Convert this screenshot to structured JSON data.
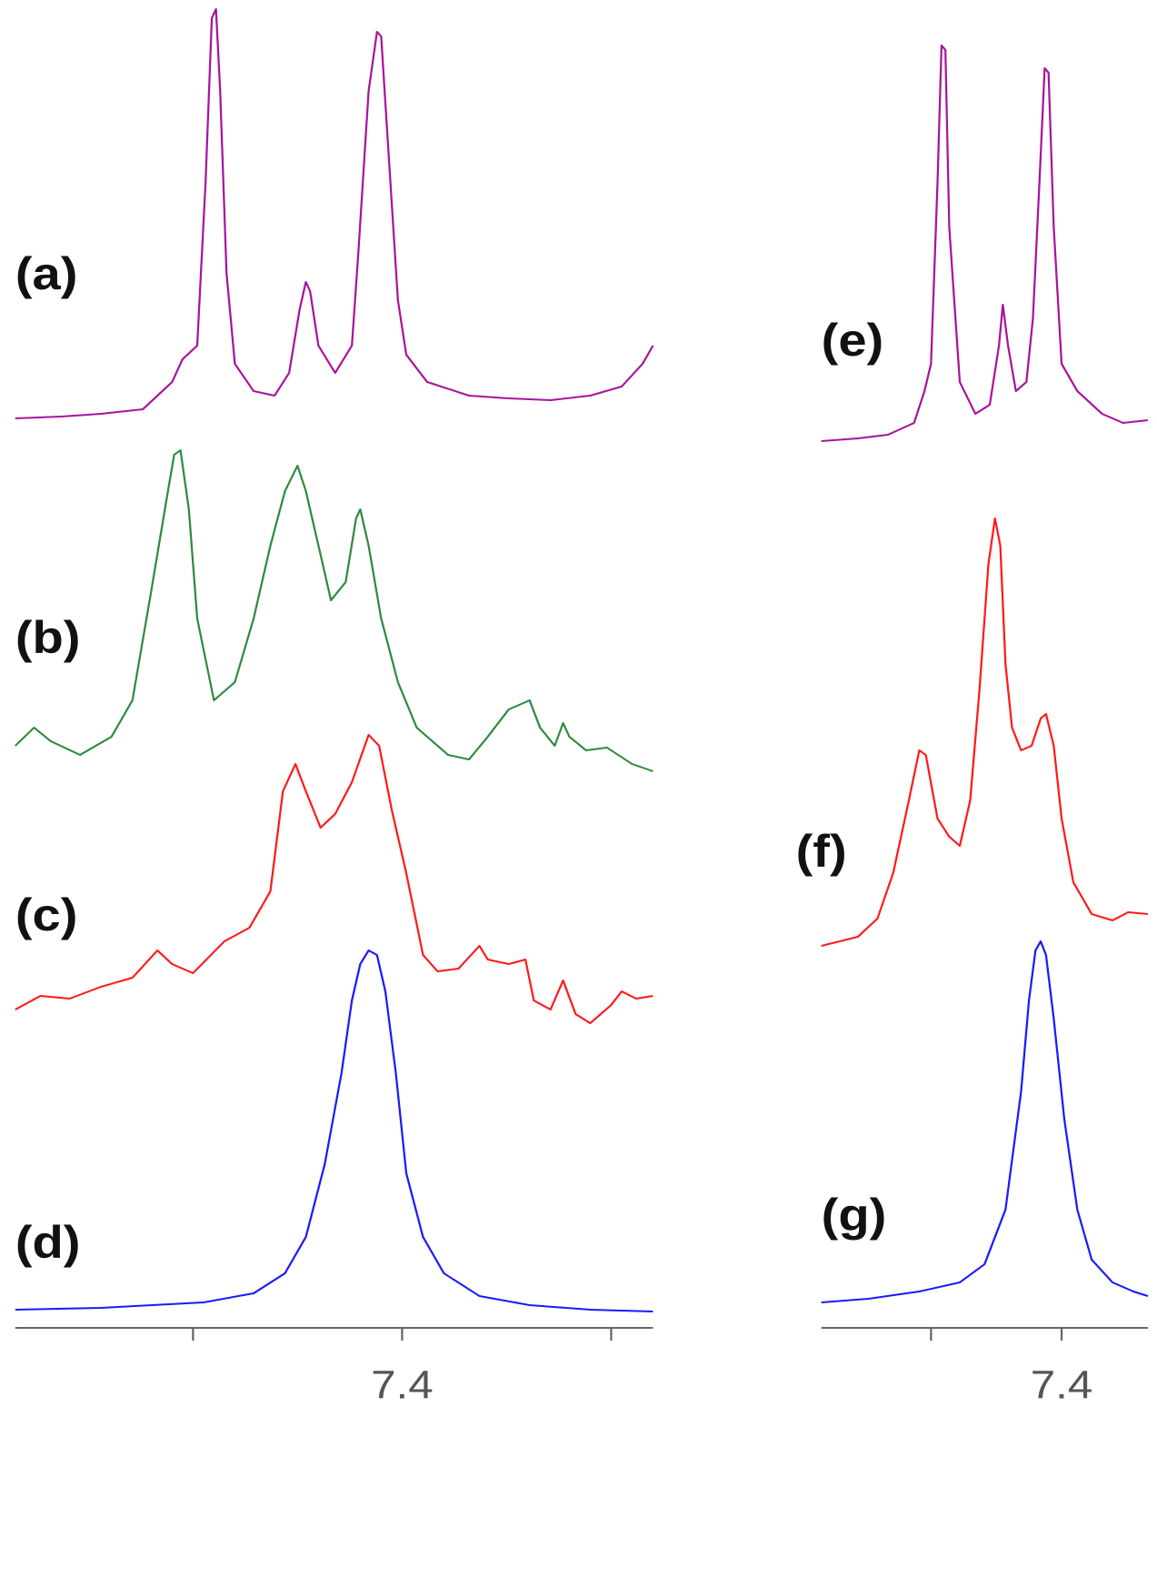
{
  "chart_data": [
    {
      "type": "line",
      "xlim": [
        7.585,
        7.28
      ],
      "xticks": [
        7.4
      ],
      "minor_xticks": [
        7.5,
        7.3
      ],
      "series": [
        {
          "name": "(a)",
          "color": "#a8149c",
          "x": [
            7.585,
            7.563,
            7.544,
            7.524,
            7.51,
            7.505,
            7.498,
            7.494,
            7.491,
            7.489,
            7.487,
            7.484,
            7.48,
            7.471,
            7.461,
            7.454,
            7.449,
            7.446,
            7.444,
            7.44,
            7.432,
            7.424,
            7.421,
            7.416,
            7.412,
            7.41,
            7.407,
            7.402,
            7.398,
            7.388,
            7.368,
            7.349,
            7.329,
            7.31,
            7.295,
            7.285,
            7.28
          ],
          "values": [
            0,
            2,
            5,
            10,
            40,
            65,
            80,
            260,
            440,
            450,
            360,
            160,
            60,
            30,
            25,
            50,
            120,
            150,
            140,
            80,
            50,
            80,
            180,
            360,
            425,
            420,
            310,
            130,
            70,
            40,
            25,
            22,
            20,
            25,
            35,
            60,
            80
          ]
        },
        {
          "name": "(b)",
          "color": "#2e8b3e",
          "x": [
            7.585,
            7.576,
            7.568,
            7.554,
            7.539,
            7.529,
            7.52,
            7.512,
            7.509,
            7.506,
            7.502,
            7.498,
            7.49,
            7.48,
            7.471,
            7.463,
            7.456,
            7.45,
            7.446,
            7.439,
            7.434,
            7.427,
            7.422,
            7.42,
            7.416,
            7.41,
            7.402,
            7.393,
            7.378,
            7.368,
            7.359,
            7.349,
            7.344,
            7.339,
            7.334,
            7.327,
            7.323,
            7.32,
            7.312,
            7.302,
            7.29,
            7.28
          ],
          "values": [
            25,
            45,
            30,
            15,
            35,
            75,
            195,
            305,
            345,
            350,
            285,
            165,
            75,
            95,
            165,
            245,
            305,
            333,
            305,
            235,
            185,
            205,
            275,
            285,
            245,
            165,
            95,
            45,
            15,
            10,
            35,
            65,
            70,
            75,
            45,
            25,
            50,
            35,
            20,
            23,
            5,
            -3
          ]
        },
        {
          "name": "(c)",
          "color": "#ff1a1a",
          "x": [
            7.585,
            7.573,
            7.559,
            7.544,
            7.529,
            7.517,
            7.51,
            7.5,
            7.485,
            7.473,
            7.463,
            7.457,
            7.451,
            7.446,
            7.439,
            7.432,
            7.424,
            7.416,
            7.411,
            7.405,
            7.398,
            7.39,
            7.383,
            7.373,
            7.363,
            7.359,
            7.349,
            7.341,
            7.337,
            7.329,
            7.323,
            7.317,
            7.31,
            7.3,
            7.295,
            7.288,
            7.28
          ],
          "values": [
            -5,
            10,
            7,
            20,
            30,
            60,
            45,
            35,
            70,
            85,
            125,
            235,
            265,
            235,
            195,
            210,
            245,
            297,
            285,
            215,
            145,
            55,
            37,
            40,
            65,
            50,
            45,
            50,
            5,
            -5,
            27,
            -10,
            -20,
            0,
            15,
            7,
            10
          ]
        },
        {
          "name": "(d)",
          "color": "#1a1aff",
          "x": [
            7.585,
            7.544,
            7.495,
            7.471,
            7.456,
            7.446,
            7.437,
            7.429,
            7.424,
            7.42,
            7.416,
            7.412,
            7.408,
            7.403,
            7.398,
            7.39,
            7.38,
            7.363,
            7.339,
            7.31,
            7.28
          ],
          "values": [
            0,
            2,
            8,
            18,
            40,
            80,
            160,
            260,
            340,
            380,
            395,
            390,
            350,
            260,
            150,
            80,
            40,
            15,
            5,
            0,
            -2
          ]
        }
      ]
    },
    {
      "type": "line",
      "xlim": [
        7.584,
        7.334
      ],
      "xticks": [
        7.4
      ],
      "minor_xticks": [
        7.5
      ],
      "series": [
        {
          "name": "(e)",
          "color": "#a8149c",
          "x": [
            7.584,
            7.556,
            7.533,
            7.513,
            7.505,
            7.5,
            7.495,
            7.492,
            7.489,
            7.486,
            7.478,
            7.466,
            7.455,
            7.448,
            7.445,
            7.441,
            7.435,
            7.427,
            7.422,
            7.417,
            7.413,
            7.41,
            7.406,
            7.4,
            7.388,
            7.369,
            7.353,
            7.334
          ],
          "values": [
            0,
            3,
            7,
            20,
            55,
            85,
            285,
            435,
            430,
            235,
            65,
            30,
            40,
            105,
            150,
            105,
            55,
            65,
            135,
            285,
            410,
            405,
            235,
            85,
            55,
            30,
            20,
            23
          ]
        },
        {
          "name": "(f)",
          "color": "#ff1a1a",
          "x": [
            7.584,
            7.556,
            7.541,
            7.529,
            7.517,
            7.509,
            7.504,
            7.495,
            7.486,
            7.478,
            7.47,
            7.463,
            7.456,
            7.451,
            7.447,
            7.443,
            7.438,
            7.431,
            7.423,
            7.416,
            7.412,
            7.406,
            7.4,
            7.391,
            7.377,
            7.361,
            7.349,
            7.334
          ],
          "values": [
            0,
            10,
            30,
            80,
            160,
            215,
            210,
            140,
            120,
            110,
            160,
            280,
            420,
            470,
            440,
            310,
            240,
            215,
            220,
            250,
            255,
            220,
            140,
            70,
            35,
            28,
            37,
            35
          ]
        },
        {
          "name": "(g)",
          "color": "#1a1aff",
          "x": [
            7.584,
            7.548,
            7.509,
            7.478,
            7.459,
            7.443,
            7.431,
            7.425,
            7.42,
            7.416,
            7.412,
            7.406,
            7.398,
            7.388,
            7.377,
            7.361,
            7.345,
            7.334
          ],
          "values": [
            -7,
            -3,
            5,
            15,
            35,
            95,
            225,
            325,
            380,
            390,
            375,
            305,
            195,
            95,
            40,
            15,
            5,
            0
          ]
        }
      ]
    }
  ]
}
